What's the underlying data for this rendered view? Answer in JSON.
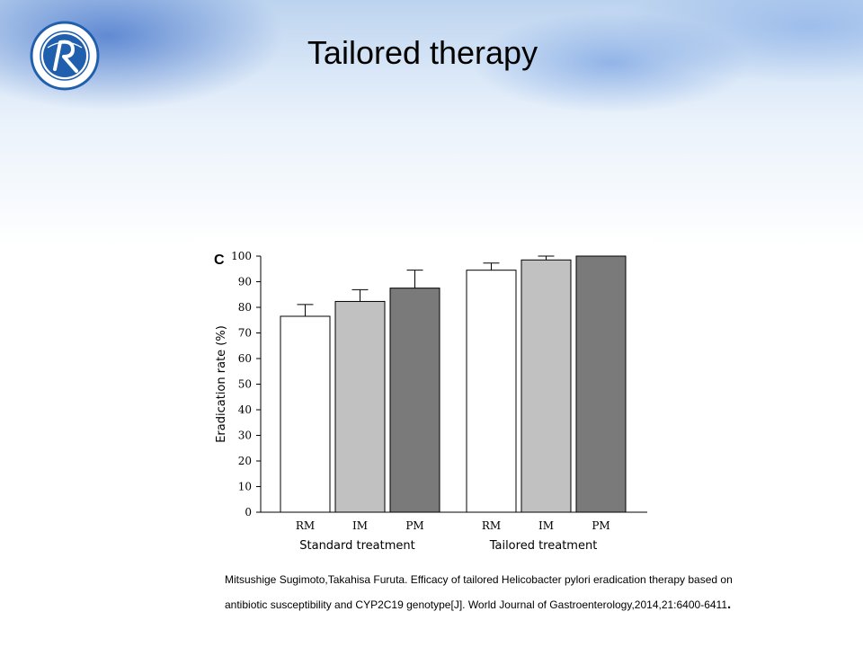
{
  "slide": {
    "title": "Tailored therapy",
    "citation_line1": "Mitsushige Sugimoto,Takahisa Furuta. Efficacy of tailored Helicobacter pylori eradication therapy based on",
    "citation_line2": "antibiotic susceptibility and CYP2C19 genotype[J]. World Journal of Gastroenterology,2014,21:6400-6411",
    "citation_end": "."
  },
  "logo": {
    "icon": "university-hospital-seal-icon",
    "color": "#1f5fae"
  },
  "chart_data": {
    "type": "bar",
    "panel_label": "C",
    "title": "",
    "ylabel": "Eradication rate (%)",
    "xlabel": "",
    "ylim": [
      0,
      100
    ],
    "yticks": [
      0,
      10,
      20,
      30,
      40,
      50,
      60,
      70,
      80,
      90,
      100
    ],
    "grid": false,
    "groups": [
      {
        "name": "Standard treatment",
        "categories": [
          "RM",
          "IM",
          "PM"
        ],
        "values": [
          76.5,
          82.3,
          87.5
        ],
        "errors": [
          4.6,
          4.6,
          7.0
        ]
      },
      {
        "name": "Tailored treatment",
        "categories": [
          "RM",
          "IM",
          "PM"
        ],
        "values": [
          94.5,
          98.5,
          100
        ],
        "errors": [
          2.8,
          1.5,
          0
        ]
      }
    ],
    "colors": [
      "#ffffff",
      "#c0c1c0",
      "#7a7a7a"
    ]
  }
}
